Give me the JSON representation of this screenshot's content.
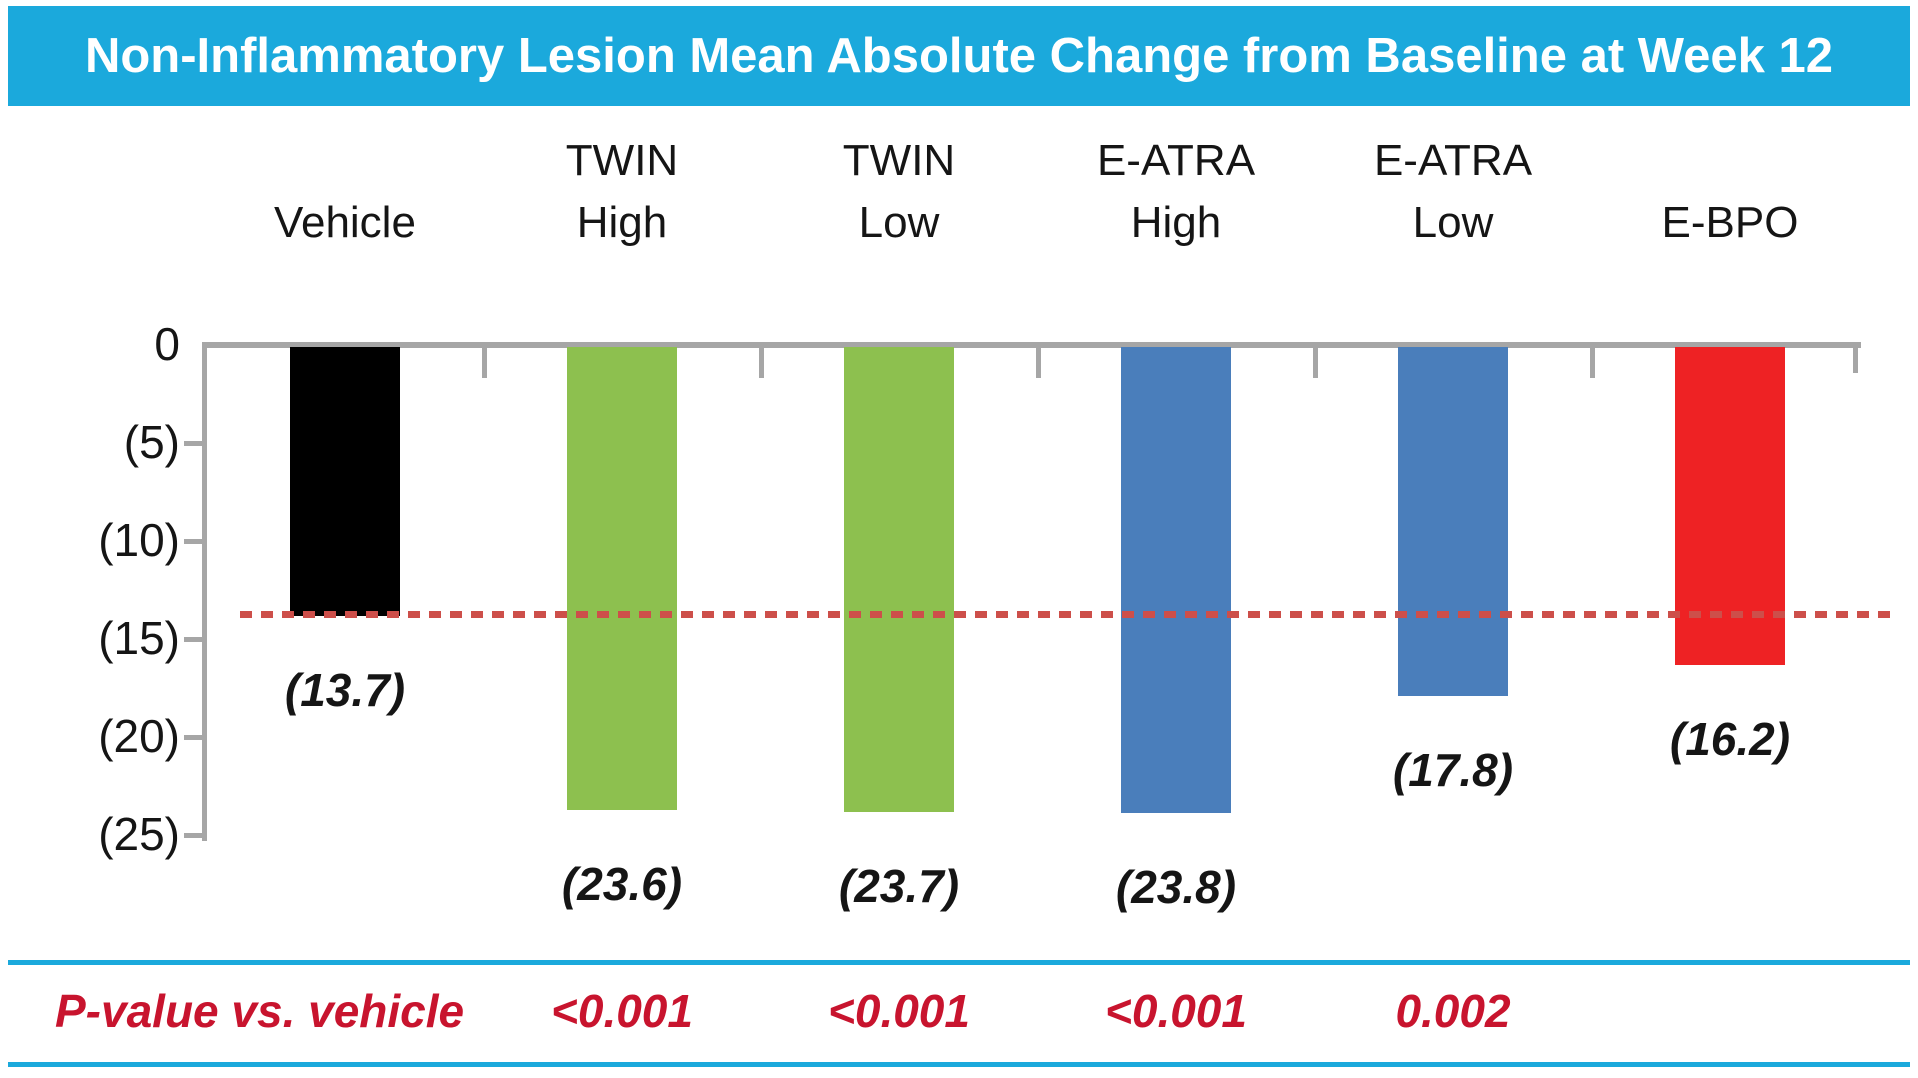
{
  "title": "Non-Inflammatory Lesion Mean Absolute Change from Baseline at Week 12",
  "chart_data": {
    "type": "bar",
    "title": "Non-Inflammatory Lesion Mean Absolute Change from Baseline at Week 12",
    "categories": [
      "Vehicle",
      "TWIN High",
      "TWIN Low",
      "E-ATRA High",
      "E-ATRA Low",
      "E-BPO"
    ],
    "category_lines": [
      [
        "Vehicle"
      ],
      [
        "TWIN",
        "High"
      ],
      [
        "TWIN",
        "Low"
      ],
      [
        "E-ATRA",
        "High"
      ],
      [
        "E-ATRA",
        "Low"
      ],
      [
        "E-BPO"
      ]
    ],
    "values": [
      -13.7,
      -23.6,
      -23.7,
      -23.8,
      -17.8,
      -16.2
    ],
    "bar_labels": [
      "(13.7)",
      "(23.6)",
      "(23.7)",
      "(23.8)",
      "(17.8)",
      "(16.2)"
    ],
    "bar_colors": [
      "#000000",
      "#8DC04F",
      "#8DC04F",
      "#4A7EBB",
      "#4A7EBB",
      "#EE2224"
    ],
    "y_axis": {
      "tick_labels": [
        "0",
        "(5)",
        "(10)",
        "(15)",
        "(20)",
        "(25)"
      ],
      "tick_values": [
        0,
        -5,
        -10,
        -15,
        -20,
        -25
      ],
      "range": [
        -25,
        0
      ]
    },
    "xlabel": "",
    "ylabel": "",
    "grid": false,
    "legend": false,
    "reference_line": {
      "value": -13.7,
      "style": "dashed",
      "color": "#CD4F4A"
    }
  },
  "p_value_row": {
    "label": "P-value vs. vehicle",
    "values_by_category": [
      "",
      "<0.001",
      "<0.001",
      "<0.001",
      "0.002",
      ""
    ],
    "text_color": "#C8142E"
  },
  "colors": {
    "title_bar_bg": "#1BA9DC",
    "title_text": "#FFFFFF",
    "separator": "#1BA9DC",
    "axis": "#A6A6A6"
  }
}
